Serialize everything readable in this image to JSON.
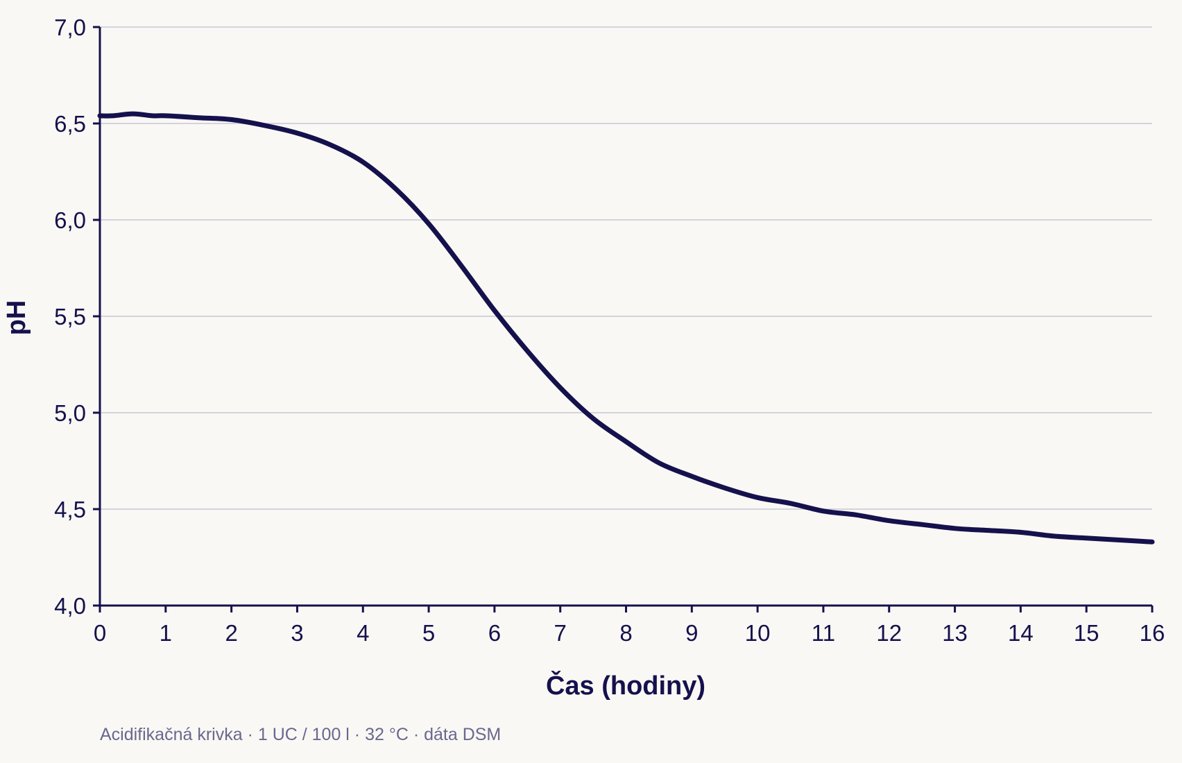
{
  "chart_data": {
    "type": "line",
    "xlabel": "Čas (hodiny)",
    "ylabel": "pH",
    "caption": "Acidifikačná krivka · 1 UC / 100 l · 32 °C · dáta DSM",
    "xlim": [
      0,
      16
    ],
    "ylim": [
      4.0,
      7.0
    ],
    "x_ticks": [
      "0",
      "1",
      "2",
      "3",
      "4",
      "5",
      "6",
      "7",
      "8",
      "9",
      "10",
      "11",
      "12",
      "13",
      "14",
      "15",
      "16"
    ],
    "y_ticks": [
      "7,0",
      "6,5",
      "6,0",
      "5,5",
      "5,0",
      "4,5",
      "4,0"
    ],
    "y_tick_values": [
      7.0,
      6.5,
      6.0,
      5.5,
      5.0,
      4.5,
      4.0
    ],
    "grid": "horizontal",
    "colors": {
      "line": "#15114d",
      "axis": "#15114d",
      "grid": "#d4d3dc",
      "background": "#f9f8f4",
      "caption": "#6a6790"
    },
    "series": [
      {
        "x": [
          0,
          0.2,
          0.5,
          0.8,
          1.0,
          1.5,
          2.0,
          2.5,
          3.0,
          3.5,
          4.0,
          4.5,
          5.0,
          5.5,
          6.0,
          6.5,
          7.0,
          7.5,
          8.0,
          8.5,
          9.0,
          9.5,
          10.0,
          10.5,
          11.0,
          11.5,
          12.0,
          12.5,
          13.0,
          13.5,
          14.0,
          14.5,
          15.0,
          15.5,
          16.0
        ],
        "y": [
          6.54,
          6.54,
          6.55,
          6.54,
          6.54,
          6.53,
          6.52,
          6.49,
          6.45,
          6.39,
          6.3,
          6.16,
          5.98,
          5.76,
          5.53,
          5.32,
          5.13,
          4.97,
          4.85,
          4.74,
          4.67,
          4.61,
          4.56,
          4.53,
          4.49,
          4.47,
          4.44,
          4.42,
          4.4,
          4.39,
          4.38,
          4.36,
          4.35,
          4.34,
          4.33
        ]
      }
    ]
  }
}
